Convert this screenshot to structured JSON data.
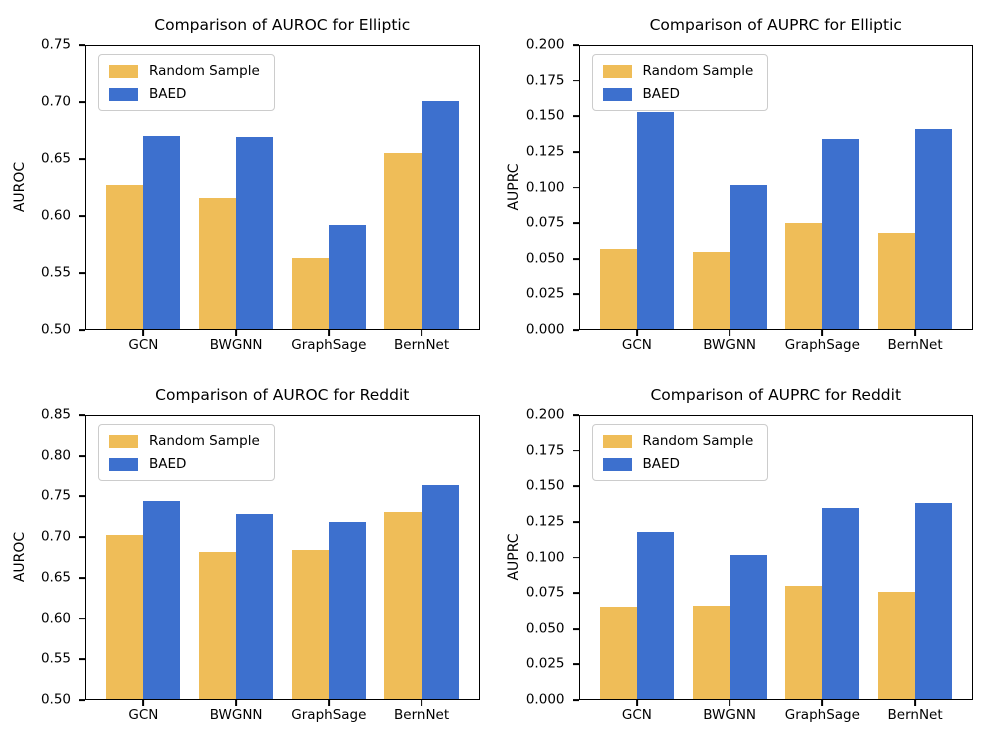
{
  "figure": {
    "background": "#ffffff"
  },
  "palette": {
    "random_sample": "#EFBD58",
    "baed": "#3D70CE",
    "axis": "#000000",
    "text": "#000000",
    "legend_border": "#cccccc"
  },
  "legend": {
    "items": [
      {
        "key": "random_sample",
        "label": "Random Sample"
      },
      {
        "key": "baed",
        "label": "BAED"
      }
    ],
    "position": "upper left"
  },
  "chart_data": [
    {
      "type": "bar",
      "title": "Comparison of AUROC for Elliptic",
      "xlabel": "",
      "ylabel": "AUROC",
      "categories": [
        "GCN",
        "BWGNN",
        "GraphSage",
        "BernNet"
      ],
      "series": [
        {
          "name": "Random Sample",
          "values": [
            0.627,
            0.616,
            0.563,
            0.655
          ]
        },
        {
          "name": "BAED",
          "values": [
            0.67,
            0.669,
            0.592,
            0.701
          ]
        }
      ],
      "ylim": [
        0.5,
        0.75
      ],
      "yticks": [
        0.5,
        0.55,
        0.6,
        0.65,
        0.7,
        0.75
      ],
      "ytick_labels": [
        "0.50",
        "0.55",
        "0.60",
        "0.65",
        "0.70",
        "0.75"
      ],
      "grid": false,
      "legend_position": "upper left"
    },
    {
      "type": "bar",
      "title": "Comparison of AUPRC for Elliptic",
      "xlabel": "",
      "ylabel": "AUPRC",
      "categories": [
        "GCN",
        "BWGNN",
        "GraphSage",
        "BernNet"
      ],
      "series": [
        {
          "name": "Random Sample",
          "values": [
            0.057,
            0.055,
            0.075,
            0.068
          ]
        },
        {
          "name": "BAED",
          "values": [
            0.153,
            0.102,
            0.134,
            0.141
          ]
        }
      ],
      "ylim": [
        0.0,
        0.2
      ],
      "yticks": [
        0.0,
        0.025,
        0.05,
        0.075,
        0.1,
        0.125,
        0.15,
        0.175,
        0.2
      ],
      "ytick_labels": [
        "0.000",
        "0.025",
        "0.050",
        "0.075",
        "0.100",
        "0.125",
        "0.150",
        "0.175",
        "0.200"
      ],
      "grid": false,
      "legend_position": "upper left"
    },
    {
      "type": "bar",
      "title": "Comparison of AUROC for Reddit",
      "xlabel": "",
      "ylabel": "AUROC",
      "categories": [
        "GCN",
        "BWGNN",
        "GraphSage",
        "BernNet"
      ],
      "series": [
        {
          "name": "Random Sample",
          "values": [
            0.703,
            0.682,
            0.684,
            0.731
          ]
        },
        {
          "name": "BAED",
          "values": [
            0.744,
            0.729,
            0.718,
            0.764
          ]
        }
      ],
      "ylim": [
        0.5,
        0.85
      ],
      "yticks": [
        0.5,
        0.55,
        0.6,
        0.65,
        0.7,
        0.75,
        0.8,
        0.85
      ],
      "ytick_labels": [
        "0.50",
        "0.55",
        "0.60",
        "0.65",
        "0.70",
        "0.75",
        "0.80",
        "0.85"
      ],
      "grid": false,
      "legend_position": "upper left"
    },
    {
      "type": "bar",
      "title": "Comparison of AUPRC for Reddit",
      "xlabel": "",
      "ylabel": "AUPRC",
      "categories": [
        "GCN",
        "BWGNN",
        "GraphSage",
        "BernNet"
      ],
      "series": [
        {
          "name": "Random Sample",
          "values": [
            0.065,
            0.066,
            0.08,
            0.076
          ]
        },
        {
          "name": "BAED",
          "values": [
            0.118,
            0.102,
            0.135,
            0.138
          ]
        }
      ],
      "ylim": [
        0.0,
        0.2
      ],
      "yticks": [
        0.0,
        0.025,
        0.05,
        0.075,
        0.1,
        0.125,
        0.15,
        0.175,
        0.2
      ],
      "ytick_labels": [
        "0.000",
        "0.025",
        "0.050",
        "0.075",
        "0.100",
        "0.125",
        "0.150",
        "0.175",
        "0.200"
      ],
      "grid": false,
      "legend_position": "upper left"
    }
  ]
}
